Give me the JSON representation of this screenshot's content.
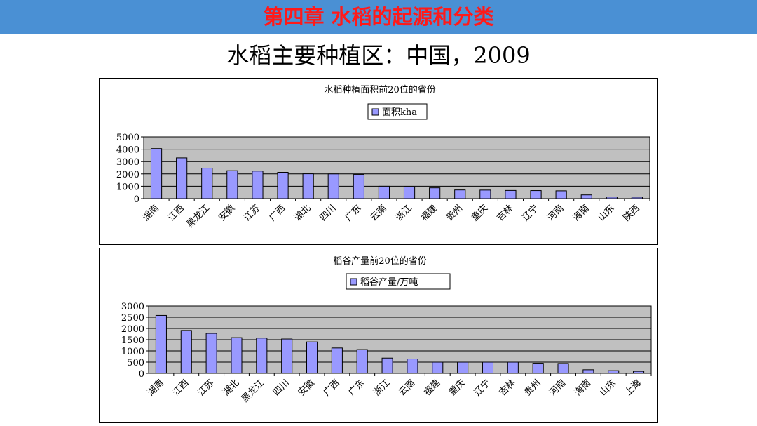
{
  "header": {
    "banner": "第四章  水稻的起源和分类",
    "title": "水稻主要种植区：中国，2009"
  },
  "colors": {
    "banner": "#4a90d4",
    "banner_text": "#ff1a1a",
    "plot_bg": "#c0c0c0",
    "bar": "#9999ff"
  },
  "chart_data": [
    {
      "type": "bar",
      "title": "水稻种植面积前20位的省份",
      "legend": "top",
      "grid": true,
      "categories": [
        "湖南",
        "江西",
        "黑龙江",
        "安徽",
        "江苏",
        "广西",
        "湖北",
        "四川",
        "广东",
        "云南",
        "浙江",
        "福建",
        "贵州",
        "重庆",
        "吉林",
        "辽宁",
        "河南",
        "海南",
        "山东",
        "陕西"
      ],
      "series": [
        {
          "name": "面积kha",
          "values": [
            4050,
            3300,
            2470,
            2260,
            2230,
            2130,
            2010,
            2000,
            1950,
            1000,
            950,
            870,
            700,
            690,
            660,
            650,
            630,
            300,
            130,
            120
          ]
        }
      ],
      "yticks": [
        "0",
        "1000",
        "2000",
        "3000",
        "4000",
        "5000"
      ],
      "ylim": [
        0,
        5000
      ]
    },
    {
      "type": "bar",
      "title": "稻谷产量前20位的省份",
      "legend": "top",
      "grid": true,
      "categories": [
        "湖南",
        "江西",
        "江苏",
        "湖北",
        "黑龙江",
        "四川",
        "安徽",
        "广西",
        "广东",
        "浙江",
        "云南",
        "福建",
        "重庆",
        "辽宁",
        "吉林",
        "贵州",
        "河南",
        "海南",
        "山东",
        "上海"
      ],
      "series": [
        {
          "name": "稻谷产量/万吨",
          "values": [
            2580,
            1910,
            1780,
            1590,
            1570,
            1530,
            1400,
            1130,
            1060,
            680,
            640,
            500,
            500,
            500,
            500,
            450,
            440,
            160,
            120,
            90
          ]
        }
      ],
      "yticks": [
        "0",
        "500",
        "1000",
        "1500",
        "2000",
        "2500",
        "3000"
      ],
      "ylim": [
        0,
        3000
      ]
    }
  ]
}
